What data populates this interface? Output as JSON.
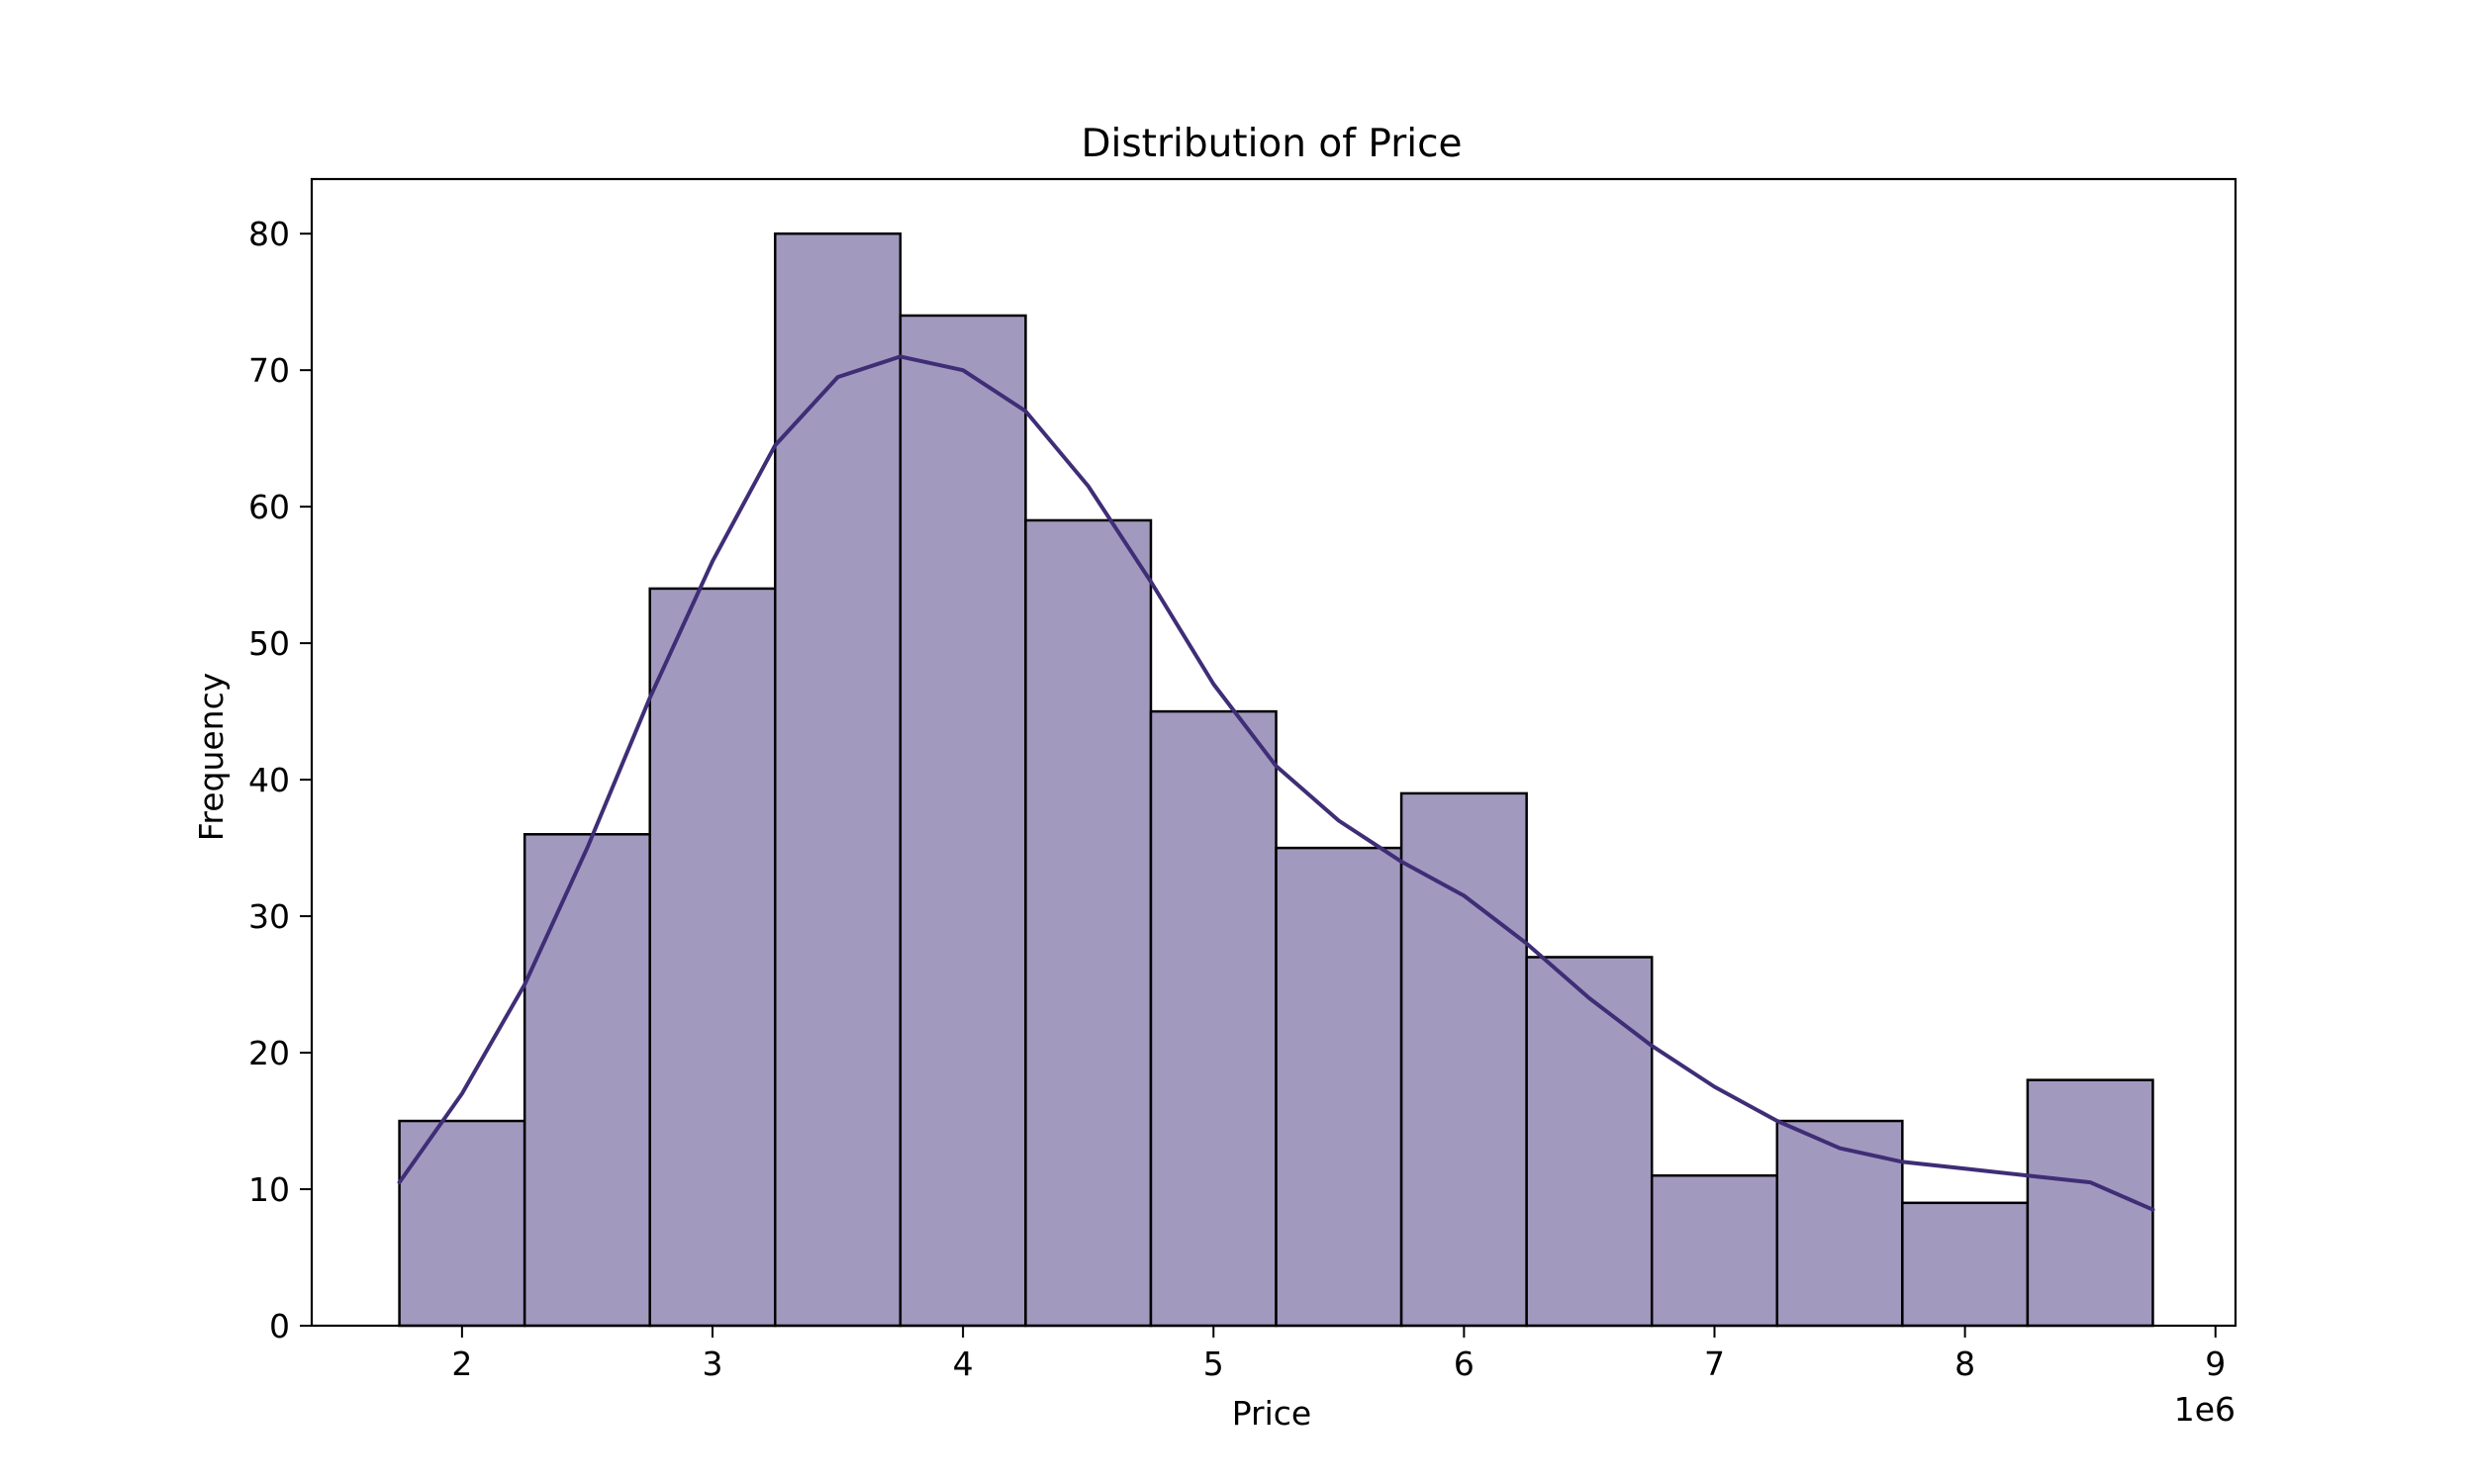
{
  "chart_data": {
    "type": "bar",
    "title": "Distribution of Price",
    "xlabel": "Price",
    "ylabel": "Frequency",
    "x_offset_label": "1e6",
    "xlim": [
      1.4,
      9.08
    ],
    "ylim": [
      0,
      84
    ],
    "x_ticks": [
      2,
      3,
      4,
      5,
      6,
      7,
      8,
      9
    ],
    "y_ticks": [
      0,
      10,
      20,
      30,
      40,
      50,
      60,
      70,
      80
    ],
    "bins": [
      {
        "x0": 1.75,
        "x1": 2.25,
        "count": 15
      },
      {
        "x0": 2.25,
        "x1": 2.75,
        "count": 36
      },
      {
        "x0": 2.75,
        "x1": 3.25,
        "count": 54
      },
      {
        "x0": 3.25,
        "x1": 3.75,
        "count": 80
      },
      {
        "x0": 3.75,
        "x1": 4.25,
        "count": 74
      },
      {
        "x0": 4.25,
        "x1": 4.75,
        "count": 59
      },
      {
        "x0": 4.75,
        "x1": 5.25,
        "count": 45
      },
      {
        "x0": 5.25,
        "x1": 5.75,
        "count": 35
      },
      {
        "x0": 5.75,
        "x1": 6.25,
        "count": 39
      },
      {
        "x0": 6.25,
        "x1": 6.75,
        "count": 27
      },
      {
        "x0": 6.75,
        "x1": 7.25,
        "count": 11
      },
      {
        "x0": 7.25,
        "x1": 7.75,
        "count": 15
      },
      {
        "x0": 7.75,
        "x1": 8.25,
        "count": 9
      },
      {
        "x0": 8.25,
        "x1": 8.75,
        "count": 18
      }
    ],
    "kde": {
      "x": [
        1.75,
        2.0,
        2.25,
        2.5,
        2.75,
        3.0,
        3.25,
        3.5,
        3.75,
        4.0,
        4.25,
        4.5,
        4.75,
        5.0,
        5.25,
        5.5,
        5.75,
        6.0,
        6.25,
        6.5,
        6.75,
        7.0,
        7.25,
        7.5,
        7.75,
        8.0,
        8.25,
        8.5,
        8.75
      ],
      "y": [
        10.5,
        17,
        25,
        35,
        46,
        56,
        64.5,
        69.5,
        71,
        70,
        67,
        61.5,
        54.5,
        47,
        41,
        37,
        34,
        31.5,
        28,
        24,
        20.5,
        17.5,
        15,
        13,
        12,
        11.5,
        11,
        10.5,
        8.5
      ]
    },
    "grid": false,
    "legend": "none",
    "colors": {
      "bar_fill": "#a299bf",
      "bar_edge": "#000000",
      "kde_line": "#3f2d76"
    }
  }
}
